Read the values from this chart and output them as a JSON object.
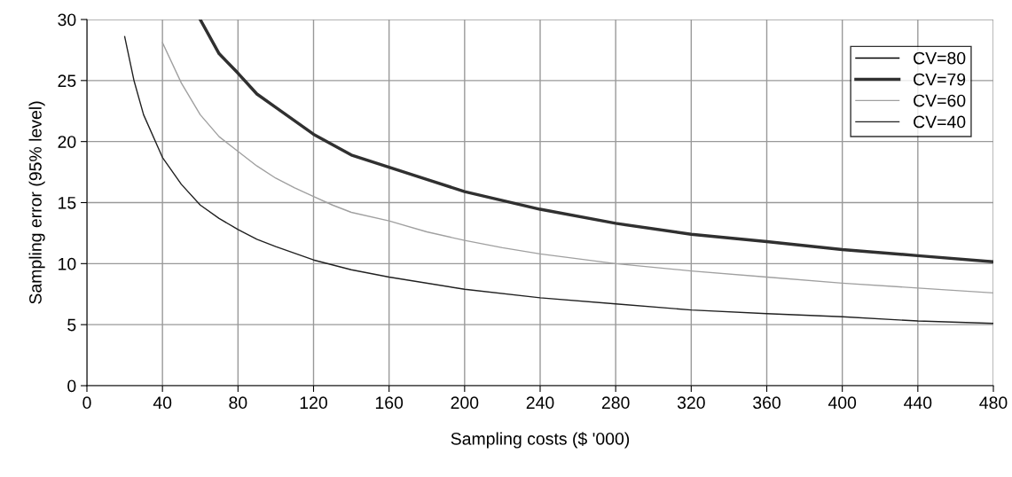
{
  "chart_data": {
    "type": "line",
    "xlabel": "Sampling costs ($ '000)",
    "ylabel": "Sampling error (95% level)",
    "xlim": [
      0,
      480
    ],
    "xticks": [
      0,
      40,
      80,
      120,
      160,
      200,
      240,
      280,
      320,
      360,
      400,
      440,
      480
    ],
    "ylim": [
      0,
      30
    ],
    "yticks": [
      0,
      5,
      10,
      15,
      20,
      25,
      30
    ],
    "grid": true,
    "legend": "top right",
    "marker": "none",
    "line_style": "solid",
    "series": [
      {
        "name": "CV=80",
        "color": "#000000"
      },
      {
        "name": "CV=79",
        "color": "#303030",
        "x": [
          60,
          70,
          80,
          90,
          100,
          120,
          140,
          160,
          180,
          200,
          240,
          280,
          320,
          360,
          400,
          440,
          480
        ],
        "values": [
          30,
          27.2,
          25.6,
          23.9,
          22.8,
          20.6,
          18.9,
          17.9,
          16.9,
          15.9,
          14.45,
          13.3,
          12.4,
          11.8,
          11.15,
          10.65,
          10.15
        ]
      },
      {
        "name": "CV=60",
        "color": "#a0a0a0",
        "x": [
          40,
          50,
          60,
          70,
          80,
          90,
          100,
          110,
          120,
          130,
          140,
          160,
          180,
          200,
          220,
          240,
          280,
          320,
          360,
          400,
          440,
          480
        ],
        "values": [
          28.1,
          24.8,
          22.2,
          20.4,
          19.2,
          18.0,
          17.0,
          16.2,
          15.5,
          14.8,
          14.2,
          13.5,
          12.6,
          11.9,
          11.3,
          10.8,
          10.0,
          9.4,
          8.9,
          8.4,
          8.0,
          7.6
        ]
      },
      {
        "name": "CV=40",
        "color": "#202020",
        "x": [
          20,
          25,
          30,
          40,
          50,
          60,
          70,
          80,
          90,
          100,
          120,
          140,
          160,
          200,
          240,
          280,
          320,
          360,
          400,
          440,
          480
        ],
        "values": [
          28.6,
          24.95,
          22.2,
          18.7,
          16.5,
          14.8,
          13.7,
          12.8,
          12.0,
          11.4,
          10.3,
          9.5,
          8.9,
          7.9,
          7.2,
          6.7,
          6.2,
          5.9,
          5.65,
          5.3,
          5.1
        ]
      }
    ]
  }
}
